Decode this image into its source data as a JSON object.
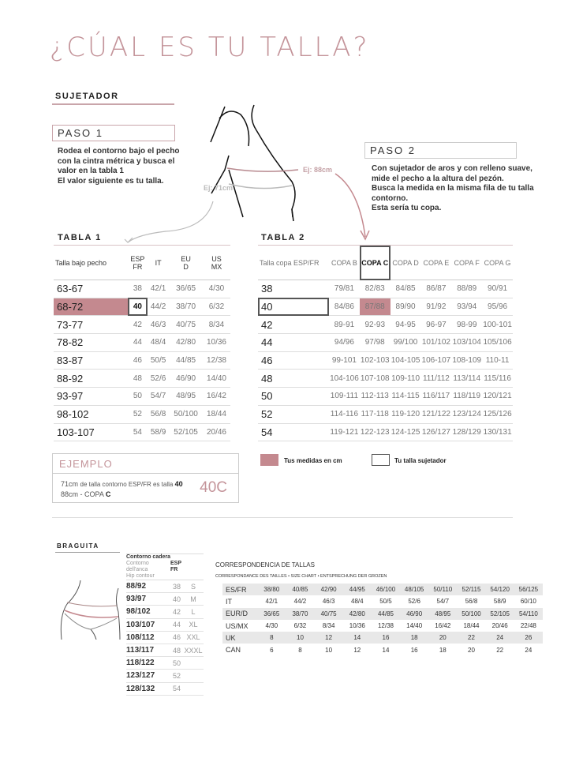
{
  "title": "¿CÚAL ES TU TALLA?",
  "sujetador": {
    "heading": "SUJETADOR",
    "paso1": {
      "label": "PASO 1",
      "lines": [
        "Rodea el contorno bajo el pecho",
        "con la cintra métrica y busca el",
        "valor en la tabla 1",
        "El valor siguiente es tu talla."
      ]
    },
    "paso2": {
      "label": "PASO 2",
      "lines": [
        "Con sujetador de aros y con relleno suave,",
        "mide el pecho a la altura del pezón.",
        "Busca la medida en la misma fila de tu talla",
        "contorno.",
        "Esta sería tu copa."
      ]
    },
    "ej_88": "Ej: 88cm",
    "ej_71": "Ej: 71cm",
    "accent": "#c4898f"
  },
  "tabla1": {
    "title": "TABLA 1",
    "headers": [
      "Talla bajo pecho",
      "ESP\nFR",
      "IT",
      "EU\nD",
      "US\nMX"
    ],
    "rows": [
      [
        "63-67",
        "38",
        "42/1",
        "36/65",
        "4/30"
      ],
      [
        "68-72",
        "40",
        "44/2",
        "38/70",
        "6/32"
      ],
      [
        "73-77",
        "42",
        "46/3",
        "40/75",
        "8/34"
      ],
      [
        "78-82",
        "44",
        "48/4",
        "42/80",
        "10/36"
      ],
      [
        "83-87",
        "46",
        "50/5",
        "44/85",
        "12/38"
      ],
      [
        "88-92",
        "48",
        "52/6",
        "46/90",
        "14/40"
      ],
      [
        "93-97",
        "50",
        "54/7",
        "48/95",
        "16/42"
      ],
      [
        "98-102",
        "52",
        "56/8",
        "50/100",
        "18/44"
      ],
      [
        "103-107",
        "54",
        "58/9",
        "52/105",
        "20/46"
      ]
    ]
  },
  "tabla2": {
    "title": "TABLA 2",
    "headers": [
      "Talla copa ESP/FR",
      "COPA B",
      "COPA C",
      "COPA D",
      "COPA E",
      "COPA F",
      "COPA G"
    ],
    "rows": [
      [
        "38",
        "79/81",
        "82/83",
        "84/85",
        "86/87",
        "88/89",
        "90/91"
      ],
      [
        "40",
        "84/86",
        "87/88",
        "89/90",
        "91/92",
        "93/94",
        "95/96"
      ],
      [
        "42",
        "89-91",
        "92-93",
        "94-95",
        "96-97",
        "98-99",
        "100-101"
      ],
      [
        "44",
        "94/96",
        "97/98",
        "99/100",
        "101/102",
        "103/104",
        "105/106"
      ],
      [
        "46",
        "99-101",
        "102-103",
        "104-105",
        "106-107",
        "108-109",
        "110-11"
      ],
      [
        "48",
        "104-106",
        "107-108",
        "109-110",
        "111/112",
        "113/114",
        "115/116"
      ],
      [
        "50",
        "109-111",
        "112-113",
        "114-115",
        "116/117",
        "118/119",
        "120/121"
      ],
      [
        "52",
        "114-116",
        "117-118",
        "119-120",
        "121/122",
        "123/124",
        "125/126"
      ],
      [
        "54",
        "119-121",
        "122-123",
        "124-125",
        "126/127",
        "128/129",
        "130/131"
      ]
    ]
  },
  "legend": {
    "medidas": "Tus medidas en cm",
    "talla": "Tu talla sujetador"
  },
  "ejemplo": {
    "title": "EJEMPLO",
    "line1_a": "71cm ",
    "line1_b": "de talla contorno ESP/FR es talla ",
    "line1_c": "40",
    "line2_a": "88cm - COPA ",
    "line2_b": "C",
    "result": "40C"
  },
  "braguita": {
    "heading": "BRAGUITA",
    "header_lines": [
      "Contorno cadera",
      "Contorno dell'anca",
      "Hip contour"
    ],
    "header_esp": "ESP\nFR",
    "rows": [
      [
        "88/92",
        "38",
        "S"
      ],
      [
        "93/97",
        "40",
        "M"
      ],
      [
        "98/102",
        "42",
        "L"
      ],
      [
        "103/107",
        "44",
        "XL"
      ],
      [
        "108/112",
        "46",
        "XXL"
      ],
      [
        "113/117",
        "48",
        "XXXL"
      ],
      [
        "118/122",
        "50",
        ""
      ],
      [
        "123/127",
        "52",
        ""
      ],
      [
        "128/132",
        "54",
        ""
      ]
    ]
  },
  "correspondencia": {
    "title": "CORRESPONDENCIA DE TALLAS",
    "subtitle": "CORRESPONDANCE DES TAILLES • SIZE CHART • ENTSPRECHUNG DER GROZEN",
    "rows": [
      [
        "ES/FR",
        "38/80",
        "40/85",
        "42/90",
        "44/95",
        "46/100",
        "48/105",
        "50/110",
        "52/115",
        "54/120",
        "56/125"
      ],
      [
        "IT",
        "42/1",
        "44/2",
        "46/3",
        "48/4",
        "50/5",
        "52/6",
        "54/7",
        "56/8",
        "58/9",
        "60/10"
      ],
      [
        "EUR/D",
        "36/65",
        "38/70",
        "40/75",
        "42/80",
        "44/85",
        "46/90",
        "48/95",
        "50/100",
        "52/105",
        "54/110"
      ],
      [
        "US/MX",
        "4/30",
        "6/32",
        "8/34",
        "10/36",
        "12/38",
        "14/40",
        "16/42",
        "18/44",
        "20/46",
        "22/48"
      ],
      [
        "UK",
        "8",
        "10",
        "12",
        "14",
        "16",
        "18",
        "20",
        "22",
        "24",
        "26"
      ],
      [
        "CAN",
        "6",
        "8",
        "10",
        "12",
        "14",
        "16",
        "18",
        "20",
        "22",
        "24"
      ]
    ]
  }
}
